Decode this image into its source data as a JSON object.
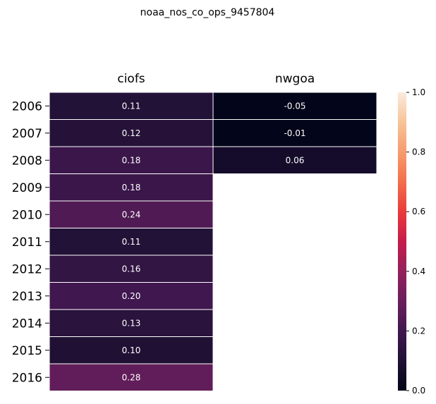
{
  "chart_data": {
    "type": "heatmap",
    "title": "noaa_nos_co_ops_9457804",
    "columns": [
      "ciofs",
      "nwgoa"
    ],
    "rows": [
      "2006",
      "2007",
      "2008",
      "2009",
      "2010",
      "2011",
      "2012",
      "2013",
      "2014",
      "2015",
      "2016"
    ],
    "values": [
      [
        0.11,
        -0.05
      ],
      [
        0.12,
        -0.01
      ],
      [
        0.18,
        0.06
      ],
      [
        0.18,
        null
      ],
      [
        0.24,
        null
      ],
      [
        0.11,
        null
      ],
      [
        0.16,
        null
      ],
      [
        0.2,
        null
      ],
      [
        0.13,
        null
      ],
      [
        0.1,
        null
      ],
      [
        0.28,
        null
      ]
    ],
    "labels": [
      [
        "0.11",
        "-0.05"
      ],
      [
        "0.12",
        "-0.01"
      ],
      [
        "0.18",
        "0.06"
      ],
      [
        "0.18",
        null
      ],
      [
        "0.24",
        null
      ],
      [
        "0.11",
        null
      ],
      [
        "0.16",
        null
      ],
      [
        "0.20",
        null
      ],
      [
        "0.13",
        null
      ],
      [
        "0.10",
        null
      ],
      [
        "0.28",
        null
      ]
    ],
    "colorbar": {
      "min": 0.0,
      "max": 1.0,
      "ticks": [
        "0.0",
        "0.2",
        "0.4",
        "0.6",
        "0.8",
        "1.0"
      ],
      "colormap": "rocket"
    },
    "column_labels_position": "top",
    "grid": false
  }
}
